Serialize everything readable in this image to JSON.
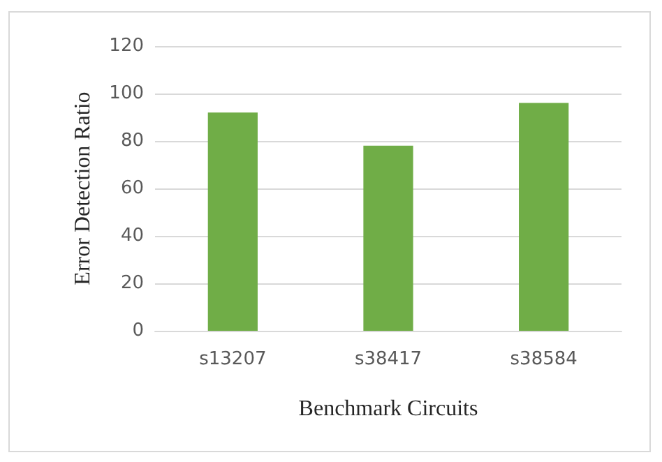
{
  "chart_data": {
    "type": "bar",
    "xlabel": "Benchmark Circuits",
    "ylabel": "Error Detection Ratio",
    "categories": [
      "s13207",
      "s38417",
      "s38584"
    ],
    "values": [
      92,
      78,
      96
    ],
    "color": "#70ad47",
    "ylim": [
      0,
      120
    ],
    "yticks": [
      0,
      20,
      40,
      60,
      80,
      100,
      120
    ],
    "grid": "y"
  }
}
